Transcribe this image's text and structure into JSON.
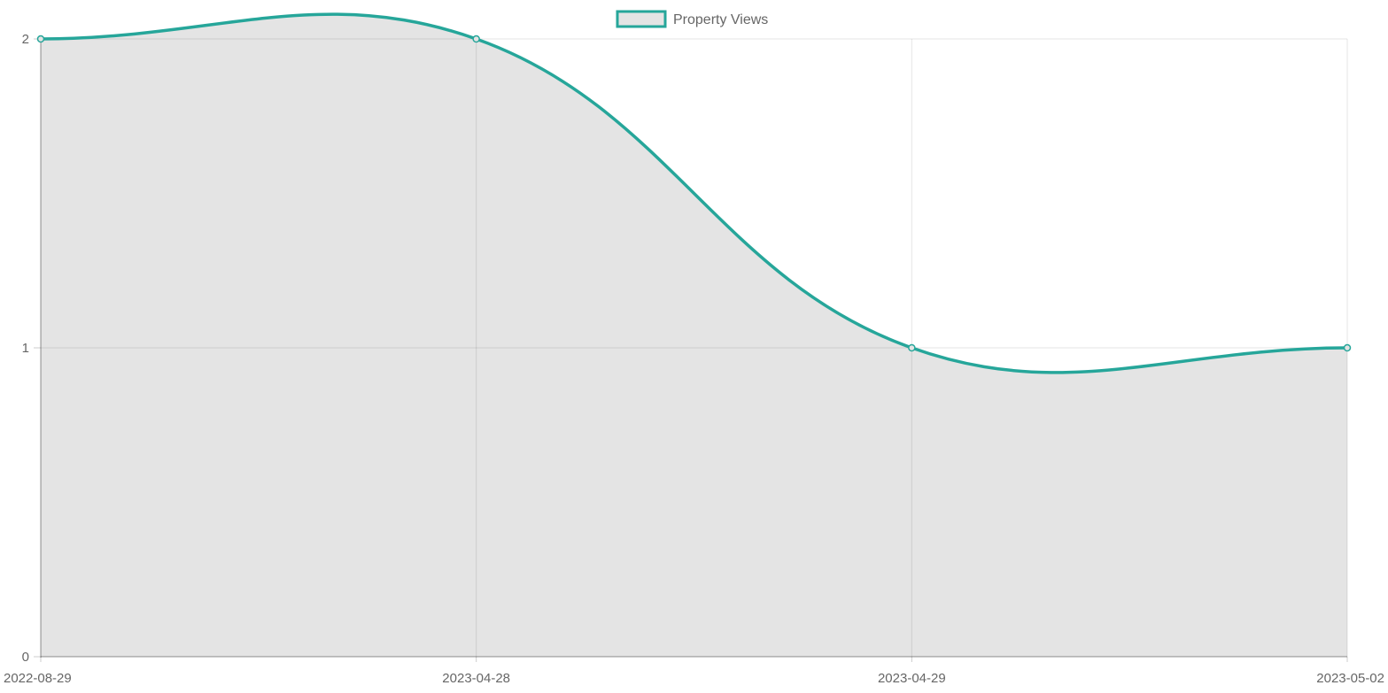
{
  "chart_data": {
    "type": "area",
    "title": "",
    "xlabel": "",
    "ylabel": "",
    "categories": [
      "2022-08-29",
      "2023-04-28",
      "2023-04-29",
      "2023-05-02"
    ],
    "series": [
      {
        "name": "Property Views",
        "values": [
          2,
          2,
          1,
          1
        ],
        "line_color": "#26a69a",
        "fill_color": "#e4e4e4"
      }
    ],
    "ylim": [
      0,
      2
    ],
    "yticks": [
      0,
      1,
      2
    ],
    "grid": true,
    "legend_position": "top-center",
    "curve": "smooth"
  }
}
